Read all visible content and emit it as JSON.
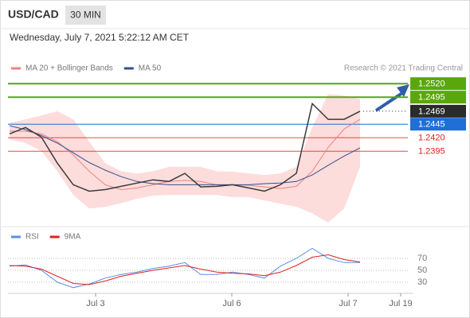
{
  "header": {
    "symbol": "USD/CAD",
    "timeframe": "30 MIN",
    "datetime": "Wednesday, July 7, 2021 5:22:12 AM CET"
  },
  "chart_data": [
    {
      "type": "line",
      "source": "Research © 2021 Trading Central",
      "xlim": [
        0,
        25
      ],
      "ylim": [
        1.226,
        1.2535
      ],
      "x": [
        0,
        1,
        2,
        3,
        4,
        5,
        6,
        7,
        8,
        9,
        10,
        11,
        12,
        13,
        14,
        15,
        16,
        17,
        18,
        19,
        20,
        21,
        22
      ],
      "series": [
        {
          "name": "MA 20 + Bollinger Bands",
          "color": "#f08080",
          "band_color": "#fddcdc",
          "values": [
            1.2432,
            1.2432,
            1.2427,
            1.2413,
            1.2388,
            1.2358,
            1.2333,
            1.2324,
            1.2327,
            1.2333,
            1.2339,
            1.2341,
            1.2339,
            1.2333,
            1.2333,
            1.2332,
            1.2329,
            1.2326,
            1.233,
            1.2358,
            1.2402,
            1.2436,
            1.2454
          ],
          "upper": [
            1.2447,
            1.2454,
            1.2461,
            1.2469,
            1.2454,
            1.2413,
            1.2373,
            1.2358,
            1.2354,
            1.2358,
            1.2366,
            1.2366,
            1.2366,
            1.2358,
            1.2357,
            1.2354,
            1.2351,
            1.2354,
            1.2366,
            1.2439,
            1.2501,
            1.2498,
            1.2491
          ],
          "lower": [
            1.2417,
            1.241,
            1.2395,
            1.2358,
            1.2314,
            1.2289,
            1.2292,
            1.2299,
            1.2307,
            1.2313,
            1.2314,
            1.2314,
            1.2314,
            1.2314,
            1.231,
            1.231,
            1.2304,
            1.2298,
            1.2292,
            1.228,
            1.2263,
            1.2289,
            1.2366
          ]
        },
        {
          "name": "MA 50",
          "color": "#33508f",
          "values": [
            1.2442,
            1.2435,
            1.2424,
            1.241,
            1.2392,
            1.2374,
            1.236,
            1.2348,
            1.2339,
            1.2335,
            1.2333,
            1.2333,
            1.2333,
            1.2333,
            1.2333,
            1.2333,
            1.2335,
            1.2336,
            1.2339,
            1.2351,
            1.2369,
            1.2386,
            1.2401
          ]
        },
        {
          "color": "#3a3a3a",
          "values": [
            1.2427,
            1.2439,
            1.2421,
            1.2373,
            1.2333,
            1.2321,
            1.2324,
            1.233,
            1.2336,
            1.2342,
            1.2339,
            1.2354,
            1.2329,
            1.233,
            1.2333,
            1.2327,
            1.2321,
            1.2333,
            1.2354,
            1.2483,
            1.2454,
            1.2454,
            1.2469
          ]
        }
      ],
      "levels": [
        {
          "value": 1.252,
          "label": "1.2520",
          "color": "#5aa70b",
          "box": true,
          "line": "solid"
        },
        {
          "value": 1.2495,
          "label": "1.2495",
          "color": "#5aa70b",
          "box": true,
          "line": "solid"
        },
        {
          "value": 1.2469,
          "label": "1.2469",
          "color": "#2b2b2b",
          "box": true,
          "line": "dotted"
        },
        {
          "value": 1.2445,
          "label": "1.2445",
          "color": "#1f6fd6",
          "box": true,
          "line": "solid"
        },
        {
          "value": 1.242,
          "label": "1.2420",
          "color": "#e02020",
          "box": false,
          "line": "solid"
        },
        {
          "value": 1.2395,
          "label": "1.2395",
          "color": "#e02020",
          "box": false,
          "line": "solid"
        }
      ]
    },
    {
      "type": "line",
      "xlim": [
        0,
        25
      ],
      "ylim": [
        10,
        100
      ],
      "yticks": [
        30,
        50,
        70
      ],
      "grid": true,
      "xticks": [
        {
          "value": 5.4,
          "label": "Jul 3"
        },
        {
          "value": 13.95,
          "label": "Jul 6"
        },
        {
          "value": 21.25,
          "label": "Jul 7"
        },
        {
          "value": 24.55,
          "label": "Jul 19"
        }
      ],
      "x": [
        0,
        1,
        2,
        3,
        4,
        5,
        6,
        7,
        8,
        9,
        10,
        11,
        12,
        13,
        14,
        15,
        16,
        17,
        18,
        19,
        20,
        21,
        22
      ],
      "series": [
        {
          "name": "RSI",
          "color": "#5b8ee6",
          "values": [
            57,
            59,
            50,
            30,
            21,
            27,
            37,
            43,
            47,
            53,
            57,
            63,
            43,
            43,
            47,
            43,
            37,
            57,
            70,
            87,
            70,
            63,
            63
          ]
        },
        {
          "name": "9MA",
          "color": "#e02020",
          "values": [
            58,
            57,
            52,
            40,
            28,
            26,
            32,
            40,
            45,
            50,
            54,
            58,
            52,
            47,
            45,
            44,
            41,
            47,
            58,
            72,
            76,
            68,
            64
          ]
        }
      ]
    }
  ]
}
